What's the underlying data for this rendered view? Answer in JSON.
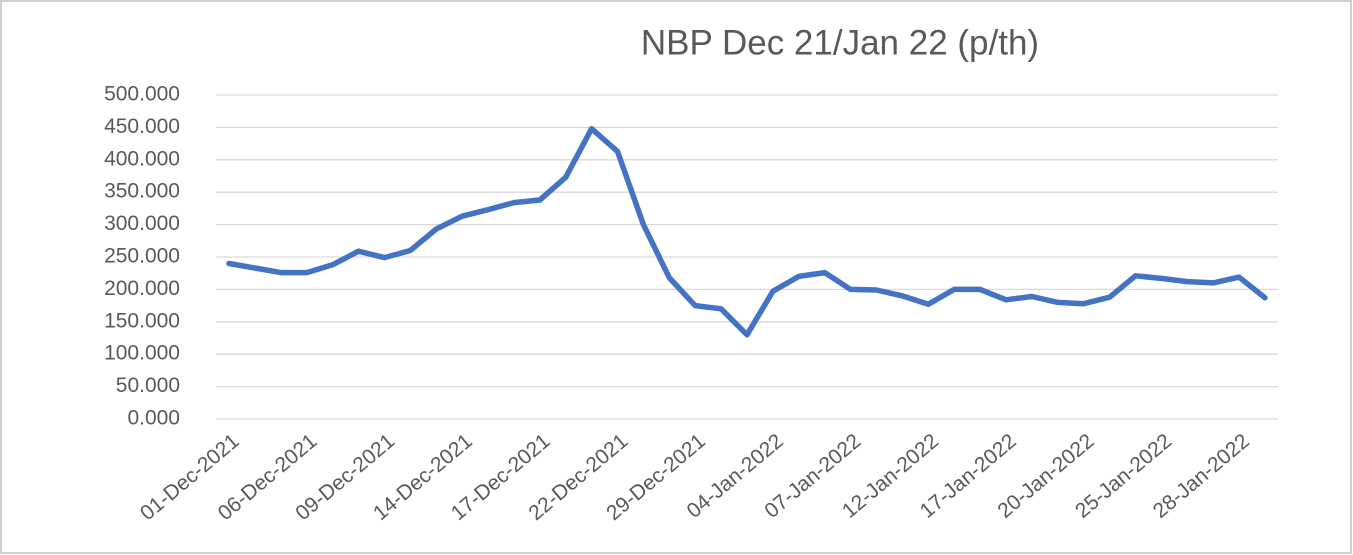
{
  "chart_data": {
    "type": "line",
    "title": "NBP Dec 21/Jan 22 (p/th)",
    "categories": [
      "01-Dec-2021",
      null,
      null,
      "06-Dec-2021",
      null,
      null,
      "09-Dec-2021",
      null,
      null,
      "14-Dec-2021",
      null,
      null,
      "17-Dec-2021",
      null,
      null,
      "22-Dec-2021",
      null,
      null,
      "29-Dec-2021",
      null,
      null,
      "04-Jan-2022",
      null,
      null,
      "07-Jan-2022",
      null,
      null,
      "12-Jan-2022",
      null,
      null,
      "17-Jan-2022",
      null,
      null,
      "20-Jan-2022",
      null,
      null,
      "25-Jan-2022",
      null,
      null,
      "28-Jan-2022",
      null
    ],
    "values": [
      240,
      233,
      226,
      226,
      238,
      259,
      249,
      260,
      293,
      313,
      323,
      334,
      338,
      373,
      448,
      413,
      300,
      218,
      175,
      170,
      130,
      197,
      220,
      226,
      200,
      199,
      190,
      177,
      200,
      200,
      184,
      189,
      180,
      178,
      188,
      221,
      217,
      212,
      210,
      219,
      187
    ],
    "color": "#4472c4",
    "ylim": [
      0,
      500
    ],
    "yticks": [
      {
        "value": 0,
        "label": "0.000"
      },
      {
        "value": 50,
        "label": "50.000"
      },
      {
        "value": 100,
        "label": "100.000"
      },
      {
        "value": 150,
        "label": "150.000"
      },
      {
        "value": 200,
        "label": "200.000"
      },
      {
        "value": 250,
        "label": "250.000"
      },
      {
        "value": 300,
        "label": "300.000"
      },
      {
        "value": 350,
        "label": "350.000"
      },
      {
        "value": 400,
        "label": "400.000"
      },
      {
        "value": 450,
        "label": "450.000"
      },
      {
        "value": 500,
        "label": "500.000"
      }
    ],
    "grid": true
  }
}
